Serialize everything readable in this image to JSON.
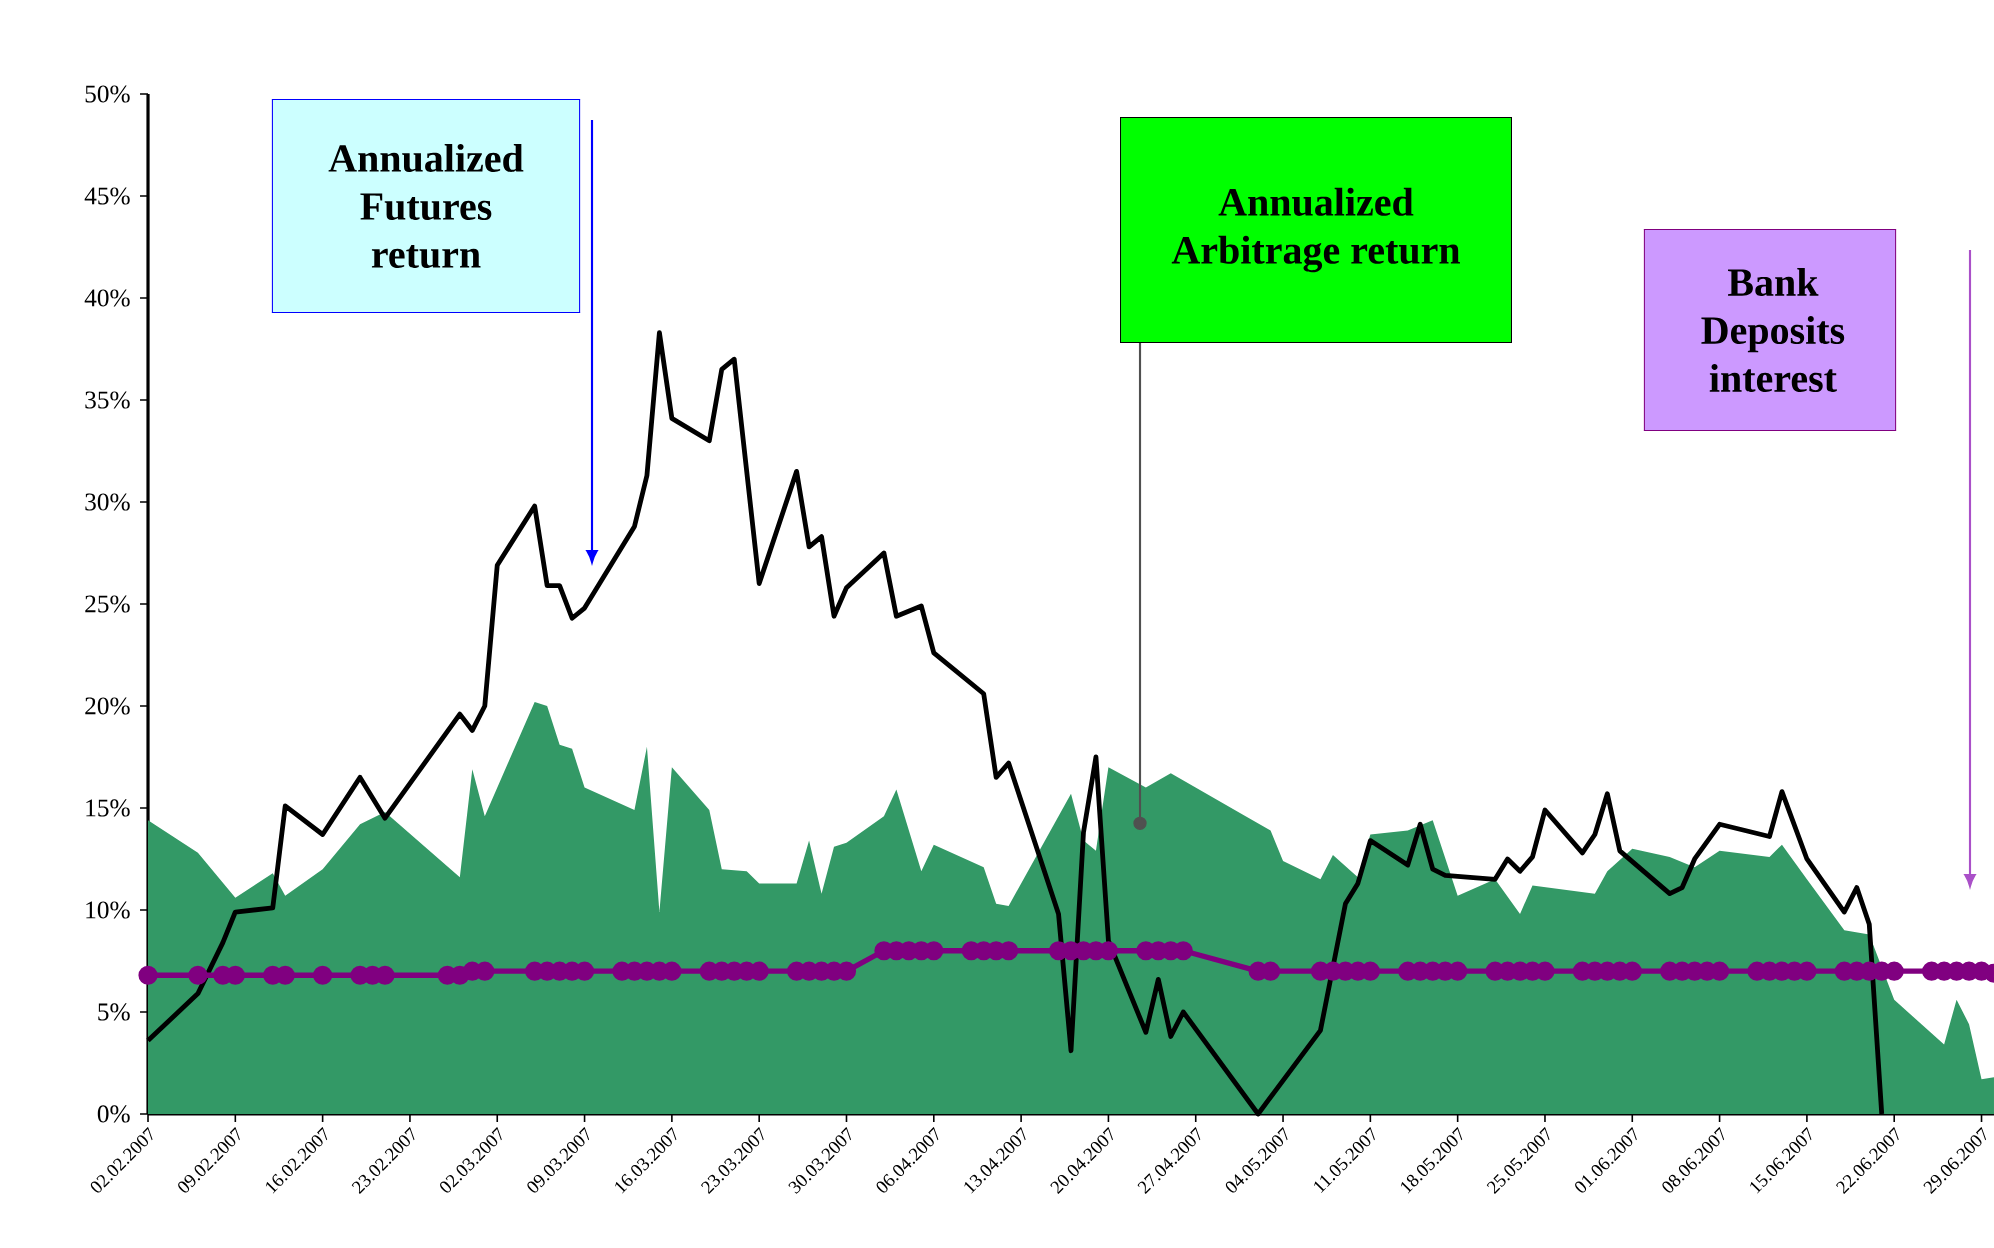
{
  "chart_data": {
    "type": "line",
    "xlim": [
      "2007-02-02",
      "2007-06-30"
    ],
    "ylim": [
      0,
      50
    ],
    "yticks": [
      {
        "value": 0,
        "label": "0%"
      },
      {
        "value": 5,
        "label": "5%"
      },
      {
        "value": 10,
        "label": "10%"
      },
      {
        "value": 15,
        "label": "15%"
      },
      {
        "value": 20,
        "label": "20%"
      },
      {
        "value": 25,
        "label": "25%"
      },
      {
        "value": 30,
        "label": "30%"
      },
      {
        "value": 35,
        "label": "35%"
      },
      {
        "value": 40,
        "label": "40%"
      },
      {
        "value": 45,
        "label": "45%"
      },
      {
        "value": 50,
        "label": "50%"
      }
    ],
    "xticks": [
      {
        "value": "2007-02-02",
        "label": "02.02.2007"
      },
      {
        "value": "2007-02-09",
        "label": "09.02.2007"
      },
      {
        "value": "2007-02-16",
        "label": "16.02.2007"
      },
      {
        "value": "2007-02-23",
        "label": "23.02.2007"
      },
      {
        "value": "2007-03-02",
        "label": "02.03.2007"
      },
      {
        "value": "2007-03-09",
        "label": "09.03.2007"
      },
      {
        "value": "2007-03-16",
        "label": "16.03.2007"
      },
      {
        "value": "2007-03-23",
        "label": "23.03.2007"
      },
      {
        "value": "2007-03-30",
        "label": "30.03.2007"
      },
      {
        "value": "2007-04-06",
        "label": "06.04.2007"
      },
      {
        "value": "2007-04-13",
        "label": "13.04.2007"
      },
      {
        "value": "2007-04-20",
        "label": "20.04.2007"
      },
      {
        "value": "2007-04-27",
        "label": "27.04.2007"
      },
      {
        "value": "2007-05-04",
        "label": "04.05.2007"
      },
      {
        "value": "2007-05-11",
        "label": "11.05.2007"
      },
      {
        "value": "2007-05-18",
        "label": "18.05.2007"
      },
      {
        "value": "2007-05-25",
        "label": "25.05.2007"
      },
      {
        "value": "2007-06-01",
        "label": "01.06.2007"
      },
      {
        "value": "2007-06-08",
        "label": "08.06.2007"
      },
      {
        "value": "2007-06-15",
        "label": "15.06.2007"
      },
      {
        "value": "2007-06-22",
        "label": "22.06.2007"
      },
      {
        "value": "2007-06-29",
        "label": "29.06.2007"
      }
    ],
    "grid": false,
    "series": [
      {
        "type": "area",
        "color": "#339966",
        "x": [
          "2007-02-02",
          "2007-02-06",
          "2007-02-09",
          "2007-02-12",
          "2007-02-13",
          "2007-02-16",
          "2007-02-19",
          "2007-02-21",
          "2007-02-27",
          "2007-02-28",
          "2007-03-01",
          "2007-03-05",
          "2007-03-06",
          "2007-03-07",
          "2007-03-08",
          "2007-03-09",
          "2007-03-13",
          "2007-03-14",
          "2007-03-15",
          "2007-03-16",
          "2007-03-19",
          "2007-03-20",
          "2007-03-22",
          "2007-03-23",
          "2007-03-26",
          "2007-03-27",
          "2007-03-28",
          "2007-03-29",
          "2007-03-30",
          "2007-04-02",
          "2007-04-03",
          "2007-04-05",
          "2007-04-06",
          "2007-04-10",
          "2007-04-11",
          "2007-04-12",
          "2007-04-17",
          "2007-04-18",
          "2007-04-19",
          "2007-04-20",
          "2007-04-23",
          "2007-04-25",
          "2007-05-01",
          "2007-05-03",
          "2007-05-04",
          "2007-05-07",
          "2007-05-08",
          "2007-05-10",
          "2007-05-11",
          "2007-05-14",
          "2007-05-16",
          "2007-05-18",
          "2007-05-21",
          "2007-05-23",
          "2007-05-24",
          "2007-05-29",
          "2007-05-30",
          "2007-06-01",
          "2007-06-04",
          "2007-06-06",
          "2007-06-08",
          "2007-06-12",
          "2007-06-13",
          "2007-06-15",
          "2007-06-18",
          "2007-06-20",
          "2007-06-22",
          "2007-06-26",
          "2007-06-27",
          "2007-06-28",
          "2007-06-29",
          "2007-06-30"
        ],
        "values": [
          14.4,
          12.8,
          10.6,
          11.8,
          10.7,
          12.0,
          14.2,
          14.8,
          11.6,
          16.9,
          14.6,
          20.2,
          20.0,
          18.1,
          17.9,
          16.0,
          14.9,
          18.0,
          9.9,
          17.0,
          14.9,
          12.0,
          11.9,
          11.3,
          11.3,
          13.4,
          10.8,
          13.1,
          13.3,
          14.6,
          15.9,
          11.9,
          13.2,
          12.1,
          10.3,
          10.2,
          15.7,
          13.4,
          12.9,
          17.0,
          16.0,
          16.7,
          14.6,
          13.9,
          12.4,
          11.5,
          12.7,
          11.6,
          13.7,
          13.9,
          14.4,
          10.7,
          11.5,
          9.8,
          11.2,
          10.8,
          11.9,
          13.0,
          12.6,
          12.1,
          12.9,
          12.6,
          13.2,
          11.5,
          9.0,
          8.8,
          5.6,
          3.4,
          5.6,
          4.4,
          1.7,
          1.8
        ]
      },
      {
        "color": "#000000",
        "x": [
          "2007-02-02",
          "2007-02-06",
          "2007-02-08",
          "2007-02-09",
          "2007-02-12",
          "2007-02-13",
          "2007-02-16",
          "2007-02-19",
          "2007-02-21",
          "2007-02-27",
          "2007-02-28",
          "2007-03-01",
          "2007-03-02",
          "2007-03-05",
          "2007-03-06",
          "2007-03-07",
          "2007-03-08",
          "2007-03-09",
          "2007-03-13",
          "2007-03-14",
          "2007-03-15",
          "2007-03-16",
          "2007-03-19",
          "2007-03-20",
          "2007-03-21",
          "2007-03-23",
          "2007-03-26",
          "2007-03-27",
          "2007-03-28",
          "2007-03-29",
          "2007-03-30",
          "2007-04-02",
          "2007-04-03",
          "2007-04-05",
          "2007-04-06",
          "2007-04-10",
          "2007-04-11",
          "2007-04-12",
          "2007-04-16",
          "2007-04-17",
          "2007-04-18",
          "2007-04-19",
          "2007-04-20",
          "2007-04-23",
          "2007-04-24",
          "2007-04-25",
          "2007-04-26",
          "2007-05-02",
          "2007-05-07",
          "2007-05-09",
          "2007-05-10",
          "2007-05-11",
          "2007-05-14",
          "2007-05-15",
          "2007-05-16",
          "2007-05-17",
          "2007-05-21",
          "2007-05-22",
          "2007-05-23",
          "2007-05-24",
          "2007-05-25",
          "2007-05-28",
          "2007-05-29",
          "2007-05-30",
          "2007-05-31",
          "2007-06-04",
          "2007-06-05",
          "2007-06-06",
          "2007-06-08",
          "2007-06-12",
          "2007-06-13",
          "2007-06-15",
          "2007-06-18",
          "2007-06-19",
          "2007-06-20",
          "2007-06-21"
        ],
        "values": [
          3.6,
          5.9,
          8.4,
          9.9,
          10.1,
          15.1,
          13.7,
          16.5,
          14.5,
          19.6,
          18.8,
          20.0,
          26.9,
          29.8,
          25.9,
          25.9,
          24.3,
          24.8,
          28.8,
          31.3,
          38.3,
          34.1,
          33.0,
          36.5,
          37.0,
          26.0,
          31.5,
          27.8,
          28.3,
          24.4,
          25.8,
          27.5,
          24.4,
          24.9,
          22.6,
          20.6,
          16.5,
          17.2,
          9.8,
          3.1,
          13.8,
          17.5,
          8.5,
          4.0,
          6.6,
          3.8,
          5.0,
          0,
          4.1,
          10.3,
          11.3,
          13.4,
          12.2,
          14.2,
          12.0,
          11.7,
          11.5,
          12.5,
          11.9,
          12.6,
          14.9,
          12.8,
          13.7,
          15.7,
          12.9,
          10.8,
          11.1,
          12.5,
          14.2,
          13.6,
          15.8,
          12.5,
          9.9,
          11.1,
          9.3,
          0
        ]
      },
      {
        "color": "#800080",
        "marker": "circle",
        "x": [
          "2007-02-02",
          "2007-02-06",
          "2007-02-08",
          "2007-02-09",
          "2007-02-12",
          "2007-02-13",
          "2007-02-16",
          "2007-02-19",
          "2007-02-20",
          "2007-02-21",
          "2007-02-26",
          "2007-02-27",
          "2007-02-28",
          "2007-03-01",
          "2007-03-05",
          "2007-03-06",
          "2007-03-07",
          "2007-03-08",
          "2007-03-09",
          "2007-03-12",
          "2007-03-13",
          "2007-03-14",
          "2007-03-15",
          "2007-03-16",
          "2007-03-19",
          "2007-03-20",
          "2007-03-21",
          "2007-03-22",
          "2007-03-23",
          "2007-03-26",
          "2007-03-27",
          "2007-03-28",
          "2007-03-29",
          "2007-03-30",
          "2007-04-02",
          "2007-04-03",
          "2007-04-04",
          "2007-04-05",
          "2007-04-06",
          "2007-04-09",
          "2007-04-10",
          "2007-04-11",
          "2007-04-12",
          "2007-04-16",
          "2007-04-17",
          "2007-04-18",
          "2007-04-19",
          "2007-04-20",
          "2007-04-23",
          "2007-04-24",
          "2007-04-25",
          "2007-04-26",
          "2007-05-02",
          "2007-05-03",
          "2007-05-07",
          "2007-05-08",
          "2007-05-09",
          "2007-05-10",
          "2007-05-11",
          "2007-05-14",
          "2007-05-15",
          "2007-05-16",
          "2007-05-17",
          "2007-05-18",
          "2007-05-21",
          "2007-05-22",
          "2007-05-23",
          "2007-05-24",
          "2007-05-25",
          "2007-05-28",
          "2007-05-29",
          "2007-05-30",
          "2007-05-31",
          "2007-06-01",
          "2007-06-04",
          "2007-06-05",
          "2007-06-06",
          "2007-06-07",
          "2007-06-08",
          "2007-06-11",
          "2007-06-12",
          "2007-06-13",
          "2007-06-14",
          "2007-06-15",
          "2007-06-18",
          "2007-06-19",
          "2007-06-20",
          "2007-06-21",
          "2007-06-22",
          "2007-06-25",
          "2007-06-26",
          "2007-06-27",
          "2007-06-28",
          "2007-06-29",
          "2007-06-30"
        ],
        "values": [
          6.8,
          6.8,
          6.8,
          6.8,
          6.8,
          6.8,
          6.8,
          6.8,
          6.8,
          6.8,
          6.8,
          6.8,
          7.0,
          7.0,
          7.0,
          7.0,
          7.0,
          7.0,
          7.0,
          7.0,
          7.0,
          7.0,
          7.0,
          7.0,
          7.0,
          7.0,
          7.0,
          7.0,
          7.0,
          7.0,
          7.0,
          7.0,
          7.0,
          7.0,
          8.0,
          8.0,
          8.0,
          8.0,
          8.0,
          8.0,
          8.0,
          8.0,
          8.0,
          8.0,
          8.0,
          8.0,
          8.0,
          8.0,
          8.0,
          8.0,
          8.0,
          8.0,
          7.0,
          7.0,
          7.0,
          7.0,
          7.0,
          7.0,
          7.0,
          7.0,
          7.0,
          7.0,
          7.0,
          7.0,
          7.0,
          7.0,
          7.0,
          7.0,
          7.0,
          7.0,
          7.0,
          7.0,
          7.0,
          7.0,
          7.0,
          7.0,
          7.0,
          7.0,
          7.0,
          7.0,
          7.0,
          7.0,
          7.0,
          7.0,
          7.0,
          7.0,
          7.0,
          7.0,
          7.0,
          7.0,
          7.0,
          7.0,
          7.0,
          7.0,
          6.9
        ]
      }
    ],
    "annotations": [
      "Annualized Futures return",
      "Annualized Arbitrage return",
      "Bank Deposits interest"
    ]
  }
}
